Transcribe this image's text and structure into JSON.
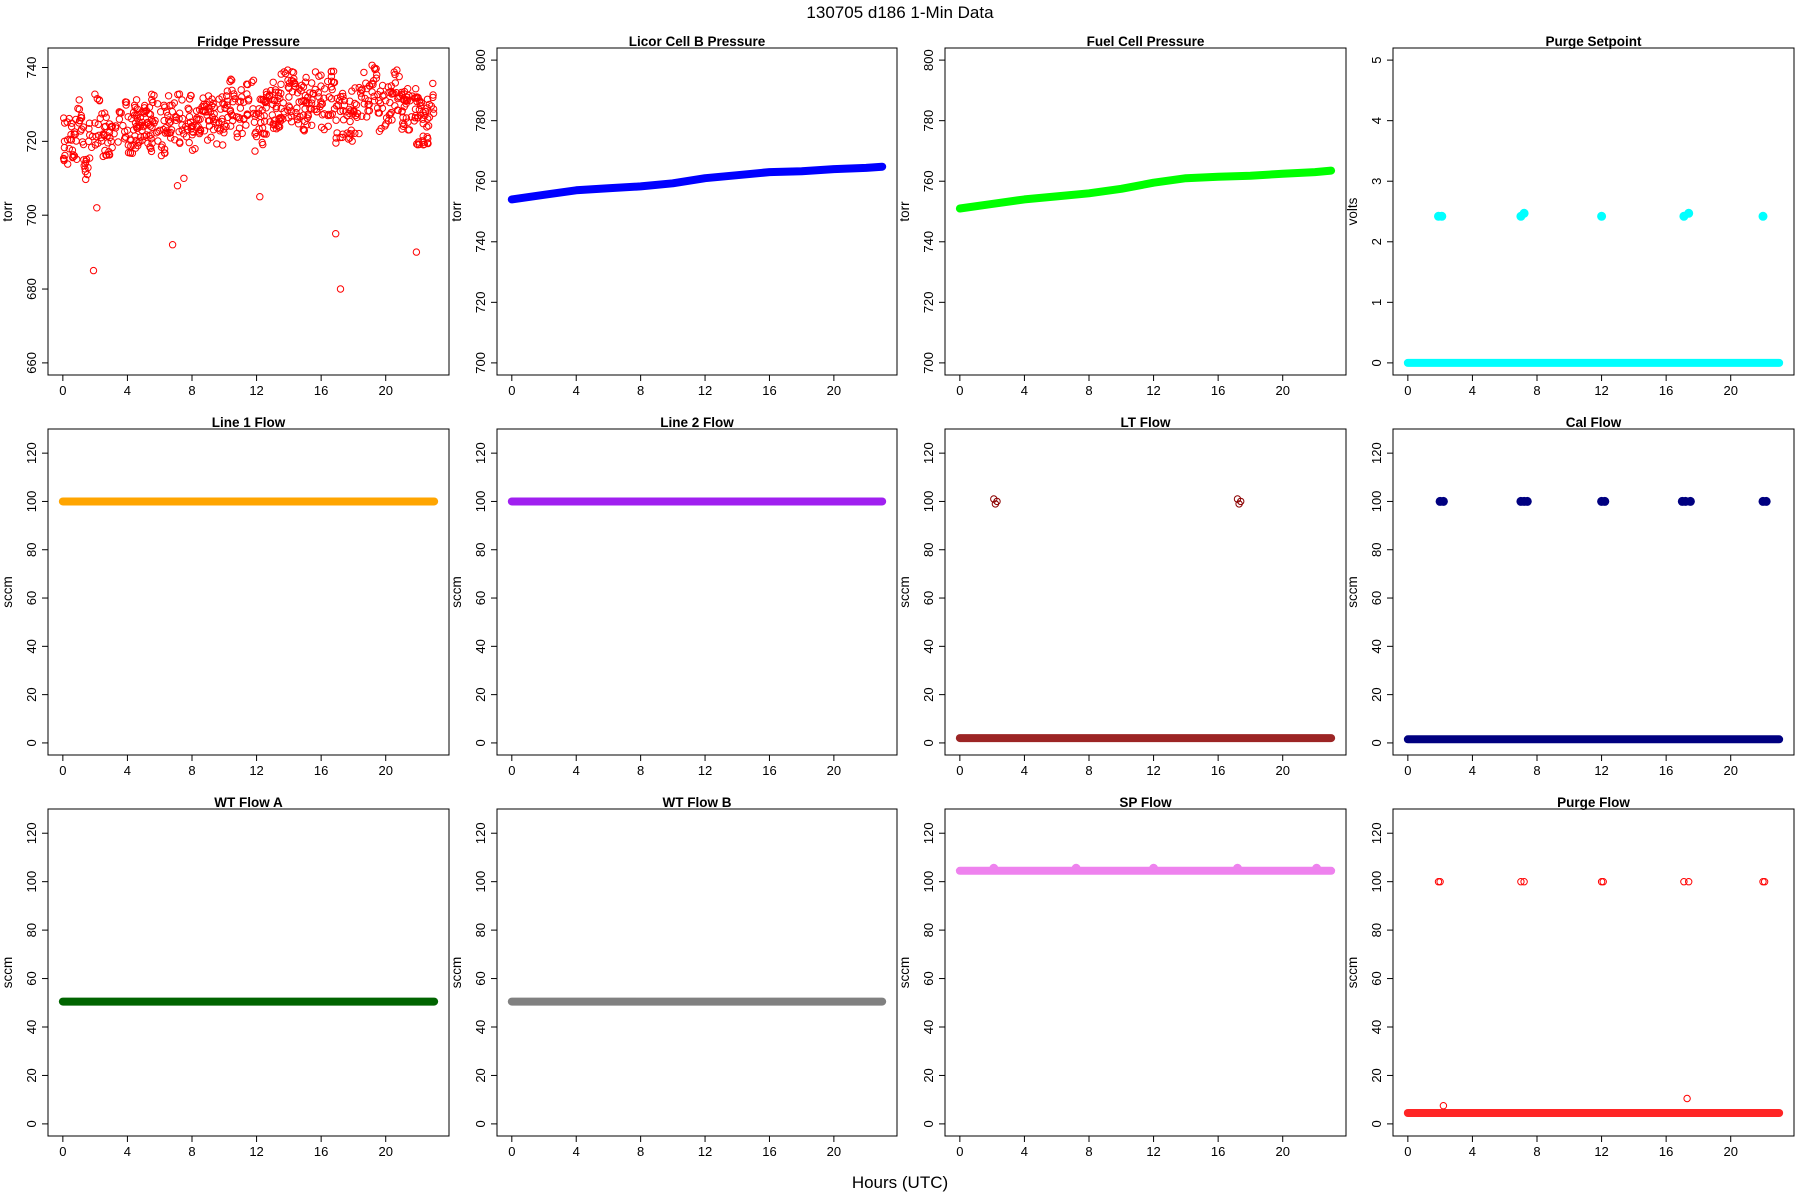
{
  "figure": {
    "title": "130705    d186    1-Min Data",
    "xlabel": "Hours (UTC)"
  },
  "chart_data": [
    {
      "type": "scatter",
      "title": "Fridge Pressure",
      "ylabel": "torr",
      "xlabel": "",
      "color": "#ff0000",
      "marker": "open-circle",
      "xlim": [
        0,
        23
      ],
      "ylim": [
        660,
        742
      ],
      "xticks": [
        0,
        4,
        8,
        12,
        16,
        20
      ],
      "yticks": [
        660,
        680,
        700,
        720,
        740
      ],
      "series": [
        {
          "x": [
            0.1,
            0.4,
            0.7,
            1.0,
            1.3,
            1.6,
            1.9,
            2.1,
            2.5,
            3.0,
            3.5,
            4.0,
            4.5,
            5.0,
            5.5,
            6.0,
            6.5,
            6.8,
            7.1,
            7.5,
            8.0,
            8.5,
            9.0,
            9.5,
            10.0,
            10.5,
            11.0,
            11.5,
            11.9,
            12.2,
            12.6,
            13.0,
            13.5,
            14.0,
            14.5,
            15.0,
            15.5,
            16.0,
            16.5,
            16.9,
            17.2,
            17.6,
            18.0,
            18.5,
            19.0,
            19.5,
            20.0,
            20.5,
            21.0,
            21.5,
            21.9,
            22.3,
            22.7
          ],
          "y": [
            720,
            718,
            722,
            725,
            715,
            720,
            685,
            702,
            722,
            724,
            726,
            723,
            725,
            724,
            726,
            723,
            727,
            692,
            708,
            710,
            724,
            726,
            728,
            725,
            730,
            727,
            729,
            731,
            722,
            705,
            731,
            730,
            733,
            732,
            729,
            731,
            733,
            730,
            732,
            695,
            680,
            727,
            728,
            732,
            735,
            729,
            731,
            733,
            728,
            731,
            690,
            726,
            730
          ]
        }
      ]
    },
    {
      "type": "scatter",
      "title": "Licor Cell B Pressure",
      "ylabel": "torr",
      "xlabel": "",
      "color": "#0000ff",
      "marker": "filled-circle",
      "xlim": [
        0,
        23
      ],
      "ylim": [
        700,
        800
      ],
      "xticks": [
        0,
        4,
        8,
        12,
        16,
        20
      ],
      "yticks": [
        700,
        720,
        740,
        760,
        780,
        800
      ],
      "series": [
        {
          "x": [
            0,
            2,
            4,
            6,
            8,
            10,
            12,
            14,
            16,
            18,
            20,
            22,
            23
          ],
          "y": [
            754,
            755.5,
            757,
            757.7,
            758.3,
            759.3,
            761,
            762,
            763,
            763.3,
            764,
            764.4,
            764.8
          ]
        }
      ]
    },
    {
      "type": "scatter",
      "title": "Fuel Cell Pressure",
      "ylabel": "torr",
      "xlabel": "",
      "color": "#00ff00",
      "marker": "filled-circle",
      "xlim": [
        0,
        23
      ],
      "ylim": [
        700,
        800
      ],
      "xticks": [
        0,
        4,
        8,
        12,
        16,
        20
      ],
      "yticks": [
        700,
        720,
        740,
        760,
        780,
        800
      ],
      "series": [
        {
          "x": [
            0,
            2,
            4,
            6,
            8,
            10,
            12,
            14,
            16,
            18,
            20,
            22,
            23
          ],
          "y": [
            751,
            752.5,
            754,
            755,
            756,
            757.5,
            759.5,
            761,
            761.5,
            761.8,
            762.5,
            763,
            763.5
          ]
        }
      ]
    },
    {
      "type": "scatter",
      "title": "Purge Setpoint",
      "ylabel": "volts",
      "xlabel": "",
      "color": "#00ffff",
      "marker": "filled-circle",
      "xlim": [
        0,
        23
      ],
      "ylim": [
        0,
        5
      ],
      "xticks": [
        0,
        4,
        8,
        12,
        16,
        20
      ],
      "yticks": [
        0,
        1,
        2,
        3,
        4,
        5
      ],
      "series": [
        {
          "x": [
            0,
            23
          ],
          "y": [
            0,
            0
          ],
          "kind": "baseline"
        },
        {
          "x": [
            1.9,
            2.1,
            7.0,
            7.2,
            12.0,
            17.1,
            17.4,
            22.0
          ],
          "y": [
            2.42,
            2.42,
            2.42,
            2.47,
            2.42,
            2.42,
            2.47,
            2.42
          ]
        }
      ]
    },
    {
      "type": "scatter",
      "title": "Line 1 Flow",
      "ylabel": "sccm",
      "xlabel": "",
      "color": "#ffa500",
      "marker": "filled-circle",
      "xlim": [
        0,
        23
      ],
      "ylim": [
        0,
        125
      ],
      "xticks": [
        0,
        4,
        8,
        12,
        16,
        20
      ],
      "yticks": [
        0,
        20,
        40,
        60,
        80,
        100,
        120
      ],
      "series": [
        {
          "x": [
            0,
            23
          ],
          "y": [
            100,
            100
          ],
          "kind": "baseline"
        }
      ]
    },
    {
      "type": "scatter",
      "title": "Line 2 Flow",
      "ylabel": "sccm",
      "xlabel": "",
      "color": "#a020f0",
      "marker": "filled-circle",
      "xlim": [
        0,
        23
      ],
      "ylim": [
        0,
        125
      ],
      "xticks": [
        0,
        4,
        8,
        12,
        16,
        20
      ],
      "yticks": [
        0,
        20,
        40,
        60,
        80,
        100,
        120
      ],
      "series": [
        {
          "x": [
            0,
            23
          ],
          "y": [
            100,
            100
          ],
          "kind": "baseline"
        }
      ]
    },
    {
      "type": "scatter",
      "title": "LT Flow",
      "ylabel": "sccm",
      "xlabel": "",
      "color": "#8b0000",
      "marker": "open-circle",
      "xlim": [
        0,
        23
      ],
      "ylim": [
        0,
        125
      ],
      "xticks": [
        0,
        4,
        8,
        12,
        16,
        20
      ],
      "yticks": [
        0,
        20,
        40,
        60,
        80,
        100,
        120
      ],
      "series": [
        {
          "x": [
            0,
            23
          ],
          "y": [
            2,
            2
          ],
          "kind": "baseline"
        },
        {
          "x": [
            2.1,
            2.2,
            2.3,
            17.2,
            17.3,
            17.4
          ],
          "y": [
            101,
            99,
            100,
            101,
            99,
            100
          ]
        }
      ]
    },
    {
      "type": "scatter",
      "title": "Cal Flow",
      "ylabel": "sccm",
      "xlabel": "",
      "color": "#000080",
      "marker": "filled-circle",
      "xlim": [
        0,
        23
      ],
      "ylim": [
        0,
        125
      ],
      "xticks": [
        0,
        4,
        8,
        12,
        16,
        20
      ],
      "yticks": [
        0,
        20,
        40,
        60,
        80,
        100,
        120
      ],
      "series": [
        {
          "x": [
            0,
            23
          ],
          "y": [
            1.5,
            1.5
          ],
          "kind": "baseline"
        },
        {
          "x": [
            2.0,
            2.2,
            7.0,
            7.2,
            7.4,
            12.0,
            12.2,
            17.0,
            17.2,
            17.5,
            22.0,
            22.2
          ],
          "y": [
            100,
            100,
            100,
            100,
            100,
            100,
            100,
            100,
            100,
            100,
            100,
            100
          ]
        }
      ]
    },
    {
      "type": "scatter",
      "title": "WT Flow A",
      "ylabel": "sccm",
      "xlabel": "",
      "color": "#006400",
      "marker": "filled-circle",
      "xlim": [
        0,
        23
      ],
      "ylim": [
        0,
        125
      ],
      "xticks": [
        0,
        4,
        8,
        12,
        16,
        20
      ],
      "yticks": [
        0,
        20,
        40,
        60,
        80,
        100,
        120
      ],
      "series": [
        {
          "x": [
            0,
            23
          ],
          "y": [
            50.5,
            50.5
          ],
          "kind": "baseline"
        }
      ]
    },
    {
      "type": "scatter",
      "title": "WT Flow B",
      "ylabel": "sccm",
      "xlabel": "",
      "color": "#808080",
      "marker": "filled-circle",
      "xlim": [
        0,
        23
      ],
      "ylim": [
        0,
        125
      ],
      "xticks": [
        0,
        4,
        8,
        12,
        16,
        20
      ],
      "yticks": [
        0,
        20,
        40,
        60,
        80,
        100,
        120
      ],
      "series": [
        {
          "x": [
            0,
            23
          ],
          "y": [
            50.5,
            50.5
          ],
          "kind": "baseline"
        }
      ]
    },
    {
      "type": "scatter",
      "title": "SP Flow",
      "ylabel": "sccm",
      "xlabel": "",
      "color": "#ee82ee",
      "marker": "filled-circle",
      "xlim": [
        0,
        23
      ],
      "ylim": [
        0,
        125
      ],
      "xticks": [
        0,
        4,
        8,
        12,
        16,
        20
      ],
      "yticks": [
        0,
        20,
        40,
        60,
        80,
        100,
        120
      ],
      "series": [
        {
          "x": [
            0,
            23
          ],
          "y": [
            104.5,
            104.5
          ],
          "kind": "baseline"
        },
        {
          "x": [
            2.1,
            7.2,
            12.0,
            17.2,
            22.1
          ],
          "y": [
            105.5,
            105.5,
            105.5,
            105.5,
            105.5
          ]
        }
      ]
    },
    {
      "type": "scatter",
      "title": "Purge Flow",
      "ylabel": "sccm",
      "xlabel": "",
      "color": "#ff0000",
      "marker": "open-circle",
      "xlim": [
        0,
        23
      ],
      "ylim": [
        0,
        125
      ],
      "xticks": [
        0,
        4,
        8,
        12,
        16,
        20
      ],
      "yticks": [
        0,
        20,
        40,
        60,
        80,
        100,
        120
      ],
      "series": [
        {
          "x": [
            0,
            23
          ],
          "y": [
            4.5,
            4.5
          ],
          "kind": "baseline"
        },
        {
          "x": [
            1.9,
            2.0,
            7.0,
            7.2,
            12.0,
            12.1,
            17.1,
            17.4,
            22.0,
            22.1,
            2.2,
            17.3
          ],
          "y": [
            100,
            100,
            100,
            100,
            100,
            100,
            100,
            100,
            100,
            100,
            7.5,
            10.5
          ]
        }
      ]
    }
  ]
}
